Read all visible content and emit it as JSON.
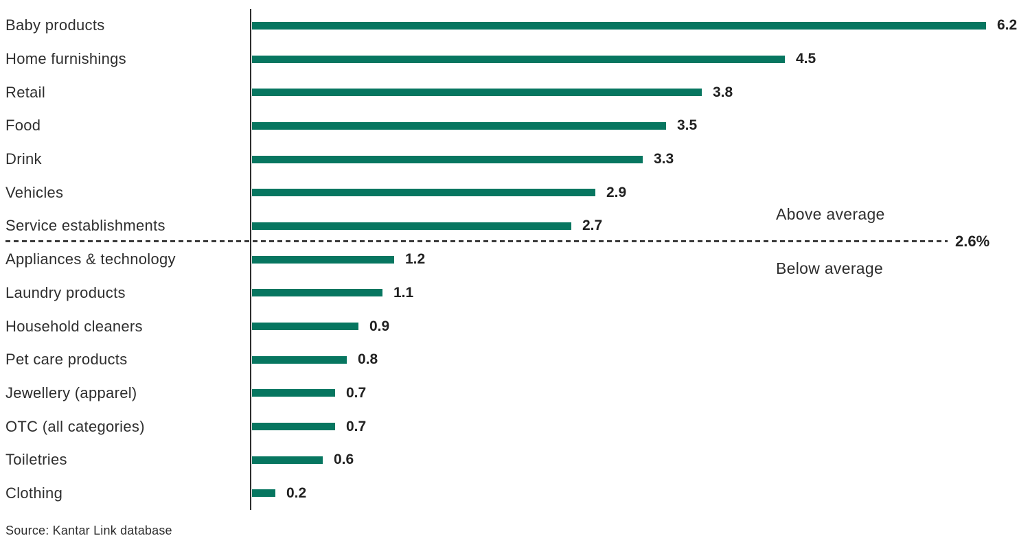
{
  "chart_data": {
    "type": "bar",
    "orientation": "horizontal",
    "title": "",
    "xlabel": "",
    "ylabel": "",
    "categories": [
      "Baby products",
      "Home furnishings",
      "Retail",
      "Food",
      "Drink",
      "Vehicles",
      "Service establishments",
      "Appliances & technology",
      "Laundry products",
      "Household cleaners",
      "Pet care products",
      "Jewellery (apparel)",
      "OTC (all categories)",
      "Toiletries",
      "Clothing"
    ],
    "values": [
      6.2,
      4.5,
      3.8,
      3.5,
      3.3,
      2.9,
      2.7,
      1.2,
      1.1,
      0.9,
      0.8,
      0.7,
      0.7,
      0.6,
      0.2
    ],
    "xlim": [
      0,
      6.6
    ],
    "grid": false,
    "value_labels": true,
    "bar_color": "#077660",
    "average_line": {
      "value": 2.6,
      "label": "2.6%",
      "above_label": "Above average",
      "below_label": "Below average",
      "line_color": "#3a3a3a",
      "style": "dashed"
    }
  },
  "source": {
    "text": "Source: Kantar Link database"
  }
}
